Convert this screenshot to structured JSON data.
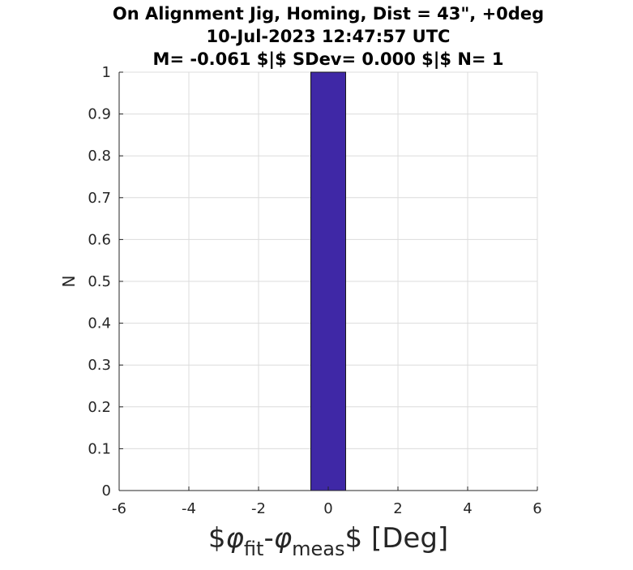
{
  "chart_data": {
    "type": "bar",
    "title_lines": [
      "On Alignment Jig, Homing, Dist = 43\", +0deg",
      "10-Jul-2023 12:47:57 UTC",
      "M= -0.061 $|$ SDev= 0.000 $|$ N= 1"
    ],
    "xlabel": {
      "prefix": "$",
      "phi1": "φ",
      "sub1": "fit",
      "dash": "-",
      "phi2": "φ",
      "sub2": "meas",
      "suffix": "$ [Deg]"
    },
    "ylabel": "N",
    "xlim": [
      -6,
      6
    ],
    "ylim": [
      0,
      1
    ],
    "xticks": [
      -6,
      -4,
      -2,
      0,
      2,
      4,
      6
    ],
    "yticks": [
      0,
      0.1,
      0.2,
      0.3,
      0.4,
      0.5,
      0.6,
      0.7,
      0.8,
      0.9,
      1
    ],
    "grid": true,
    "bins": [
      {
        "x0": -0.5,
        "x1": 0.5,
        "count": 1
      }
    ],
    "colors": {
      "bar": "#3f28a6",
      "bar_edge": "#1a1a1a",
      "grid": "#dcdcdc",
      "axis": "#262626"
    }
  }
}
